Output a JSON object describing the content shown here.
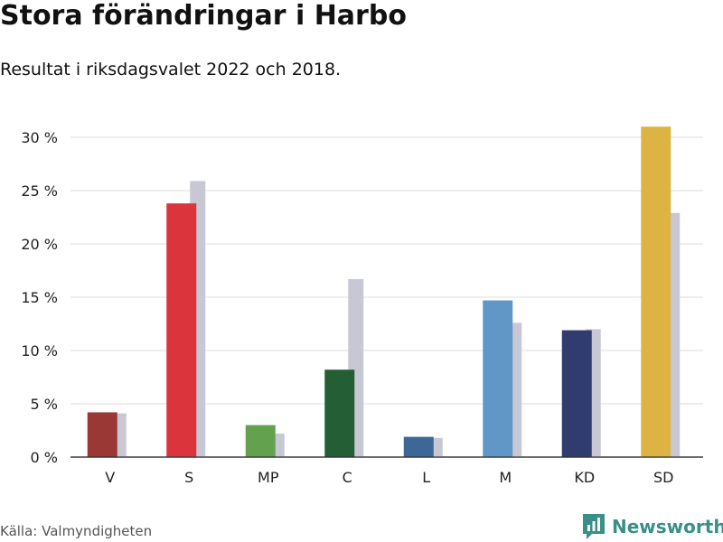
{
  "header": {
    "title": "Stora förändringar i Harbo",
    "subtitle": "Resultat i riksdagsvalet 2022 och 2018."
  },
  "footer": {
    "source": "Källa: Valmyndigheten",
    "brand": "Newsworthy",
    "brand_icon": "newsworthy-logo-icon",
    "brand_color": "#3a8f88"
  },
  "chart_data": {
    "type": "bar",
    "categories": [
      "V",
      "S",
      "MP",
      "C",
      "L",
      "M",
      "KD",
      "SD"
    ],
    "series": [
      {
        "values": [
          4.2,
          23.8,
          3.0,
          8.2,
          1.9,
          14.7,
          11.9,
          31.0
        ],
        "colors": [
          "#993835",
          "#dc343c",
          "#64a14f",
          "#245e34",
          "#3c6796",
          "#6197c6",
          "#303c70",
          "#ddb443"
        ]
      },
      {
        "values": [
          4.1,
          25.9,
          2.2,
          16.7,
          1.8,
          12.6,
          12.0,
          22.9
        ],
        "color": "#c8c8d4"
      }
    ],
    "yticks": [
      "0 %",
      "5 %",
      "10 %",
      "15 %",
      "20 %",
      "25 %",
      "30 %"
    ],
    "ylim": [
      0,
      30
    ],
    "grid": true,
    "legend": "none"
  }
}
